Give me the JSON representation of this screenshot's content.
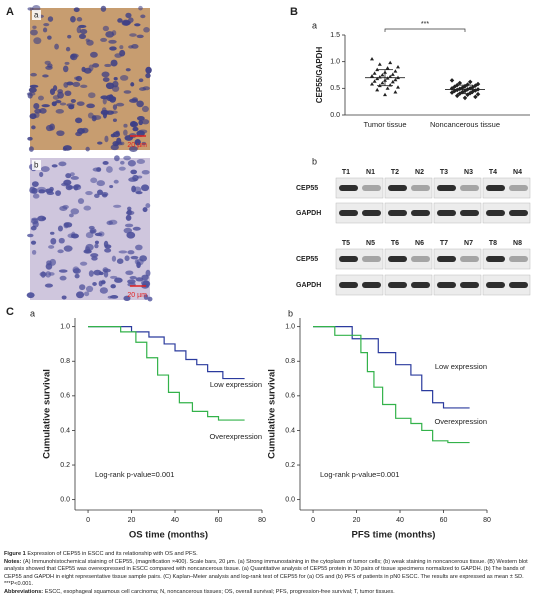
{
  "figure": {
    "labels": [
      "A",
      "B",
      "C"
    ],
    "subpanel_labels": [
      "a",
      "b"
    ],
    "scale_bar": "20 µm",
    "blot": {
      "lanes": [
        [
          "T1",
          "N1",
          "T2",
          "N2",
          "T3",
          "N3",
          "T4",
          "N4"
        ],
        [
          "T5",
          "N5",
          "T6",
          "N6",
          "T7",
          "N7",
          "T8",
          "N8"
        ]
      ],
      "rows": [
        "CEP55",
        "GAPDH"
      ]
    },
    "caption": {
      "title_label": "Figure 1",
      "title_text": "Expression of CEP55 in ESCC and its relationship with OS and PFS.",
      "notes_label": "Notes:",
      "notes_text": "(A) Immunohistochemical staining of CEP55, (magnification ×400). Scale bars, 20 μm. (a) Strong immunostaining in the cytoplasm of tumor cells; (b) weak staining in noncancerous tissue. (B) Western blot analysis showed that CEP55 was overexpressed in ESCC compared with noncancerous tissue. (a) Quantitative analysis of CEP55 protein in 30 pairs of tissue specimens normalized to GAPDH. (b) The bands of CEP55 and GAPDH in eight representative tissue sample pairs. (C) Kaplan–Meier analysis and log-rank test of CEP55 for (a) OS and (b) PFS of patients in pN0 ESCC. The results are expressed as mean ± SD. ***P<0.001.",
      "abbr_label": "Abbreviations:",
      "abbr_text": "ESCC, esophageal squamous cell carcinoma; N, noncancerous tissues; OS, overall survival; PFS, progression-free survival; T, tumor tissues."
    }
  },
  "chart_data": [
    {
      "type": "scatter",
      "ylabel": "CEP55/GAPDH",
      "categories": [
        "Tumor tissue",
        "Noncancerous tissue"
      ],
      "groups": [
        {
          "color": "#222222",
          "values": [
            1.05,
            0.98,
            0.95,
            0.9,
            0.88,
            0.85,
            0.82,
            0.8,
            0.78,
            0.76,
            0.75,
            0.73,
            0.72,
            0.71,
            0.7,
            0.69,
            0.68,
            0.66,
            0.65,
            0.63,
            0.62,
            0.6,
            0.58,
            0.56,
            0.55,
            0.52,
            0.5,
            0.47,
            0.43,
            0.38
          ]
        },
        {
          "color": "#222222",
          "values": [
            0.65,
            0.62,
            0.6,
            0.58,
            0.57,
            0.56,
            0.55,
            0.54,
            0.53,
            0.52,
            0.51,
            0.5,
            0.5,
            0.49,
            0.48,
            0.48,
            0.47,
            0.46,
            0.45,
            0.45,
            0.44,
            0.43,
            0.42,
            0.41,
            0.4,
            0.39,
            0.38,
            0.36,
            0.34,
            0.32
          ]
        }
      ],
      "means": [
        0.7,
        0.48
      ],
      "sd": [
        0.15,
        0.08
      ],
      "annotation": "***",
      "ylim": [
        0,
        1.5
      ],
      "yticks": [
        {
          "value": 0,
          "label": "0.0"
        },
        {
          "value": 0.5,
          "label": "0.5"
        },
        {
          "value": 1,
          "label": "1.0"
        },
        {
          "value": 1.5,
          "label": "1.5"
        }
      ]
    },
    {
      "type": "line",
      "xlabel": "OS time (months)",
      "ylabel": "Cumulative survival",
      "annotation": "Log-rank p-value=0.001",
      "xlim": [
        -6,
        80
      ],
      "ylim": [
        -0.06,
        1.05
      ],
      "xticks": [
        0,
        20,
        40,
        60,
        80
      ],
      "yticks": [
        {
          "value": 0,
          "label": "0.0"
        },
        {
          "value": 0.2,
          "label": "0.2"
        },
        {
          "value": 0.4,
          "label": "0.4"
        },
        {
          "value": 0.6,
          "label": "0.6"
        },
        {
          "value": 0.8,
          "label": "0.8"
        },
        {
          "value": 1,
          "label": "1.0"
        }
      ],
      "series": [
        {
          "name": "Low expression",
          "color": "#2b3b9e",
          "x": [
            0,
            20,
            20,
            28,
            28,
            35,
            35,
            40,
            40,
            45,
            45,
            50,
            50,
            55,
            55,
            62,
            62,
            72
          ],
          "y": [
            1,
            1,
            0.97,
            0.97,
            0.94,
            0.94,
            0.9,
            0.9,
            0.86,
            0.86,
            0.81,
            0.81,
            0.78,
            0.78,
            0.74,
            0.74,
            0.7,
            0.7
          ]
        },
        {
          "name": "Overexpression",
          "color": "#33b24a",
          "x": [
            0,
            15,
            15,
            22,
            22,
            27,
            27,
            32,
            32,
            37,
            37,
            42,
            42,
            48,
            48,
            55,
            55,
            60,
            60,
            72
          ],
          "y": [
            1,
            1,
            0.97,
            0.97,
            0.91,
            0.91,
            0.82,
            0.82,
            0.72,
            0.72,
            0.62,
            0.62,
            0.56,
            0.56,
            0.51,
            0.51,
            0.48,
            0.48,
            0.46,
            0.46
          ]
        }
      ]
    },
    {
      "type": "line",
      "xlabel": "PFS time (months)",
      "ylabel": "Cumulative survival",
      "annotation": "Log-rank p-value=0.001",
      "xlim": [
        -6,
        80
      ],
      "ylim": [
        -0.06,
        1.05
      ],
      "xticks": [
        0,
        20,
        40,
        60,
        80
      ],
      "yticks": [
        {
          "value": 0,
          "label": "0.0"
        },
        {
          "value": 0.2,
          "label": "0.2"
        },
        {
          "value": 0.4,
          "label": "0.4"
        },
        {
          "value": 0.6,
          "label": "0.6"
        },
        {
          "value": 0.8,
          "label": "0.8"
        },
        {
          "value": 1,
          "label": "1.0"
        }
      ],
      "series": [
        {
          "name": "Low expression",
          "color": "#2b3b9e",
          "x": [
            0,
            18,
            18,
            30,
            30,
            38,
            38,
            45,
            45,
            50,
            50,
            55,
            55,
            60,
            60,
            72
          ],
          "y": [
            1,
            1,
            0.93,
            0.93,
            0.85,
            0.85,
            0.78,
            0.78,
            0.72,
            0.72,
            0.63,
            0.63,
            0.56,
            0.56,
            0.53,
            0.53
          ]
        },
        {
          "name": "Overexpression",
          "color": "#33b24a",
          "x": [
            0,
            10,
            10,
            22,
            22,
            25,
            25,
            28,
            28,
            32,
            32,
            38,
            38,
            45,
            45,
            50,
            50,
            55,
            55,
            62,
            62,
            72
          ],
          "y": [
            1,
            1,
            0.95,
            0.95,
            0.85,
            0.85,
            0.74,
            0.74,
            0.65,
            0.65,
            0.55,
            0.55,
            0.47,
            0.47,
            0.44,
            0.44,
            0.4,
            0.4,
            0.34,
            0.34,
            0.33,
            0.33
          ]
        }
      ]
    }
  ]
}
